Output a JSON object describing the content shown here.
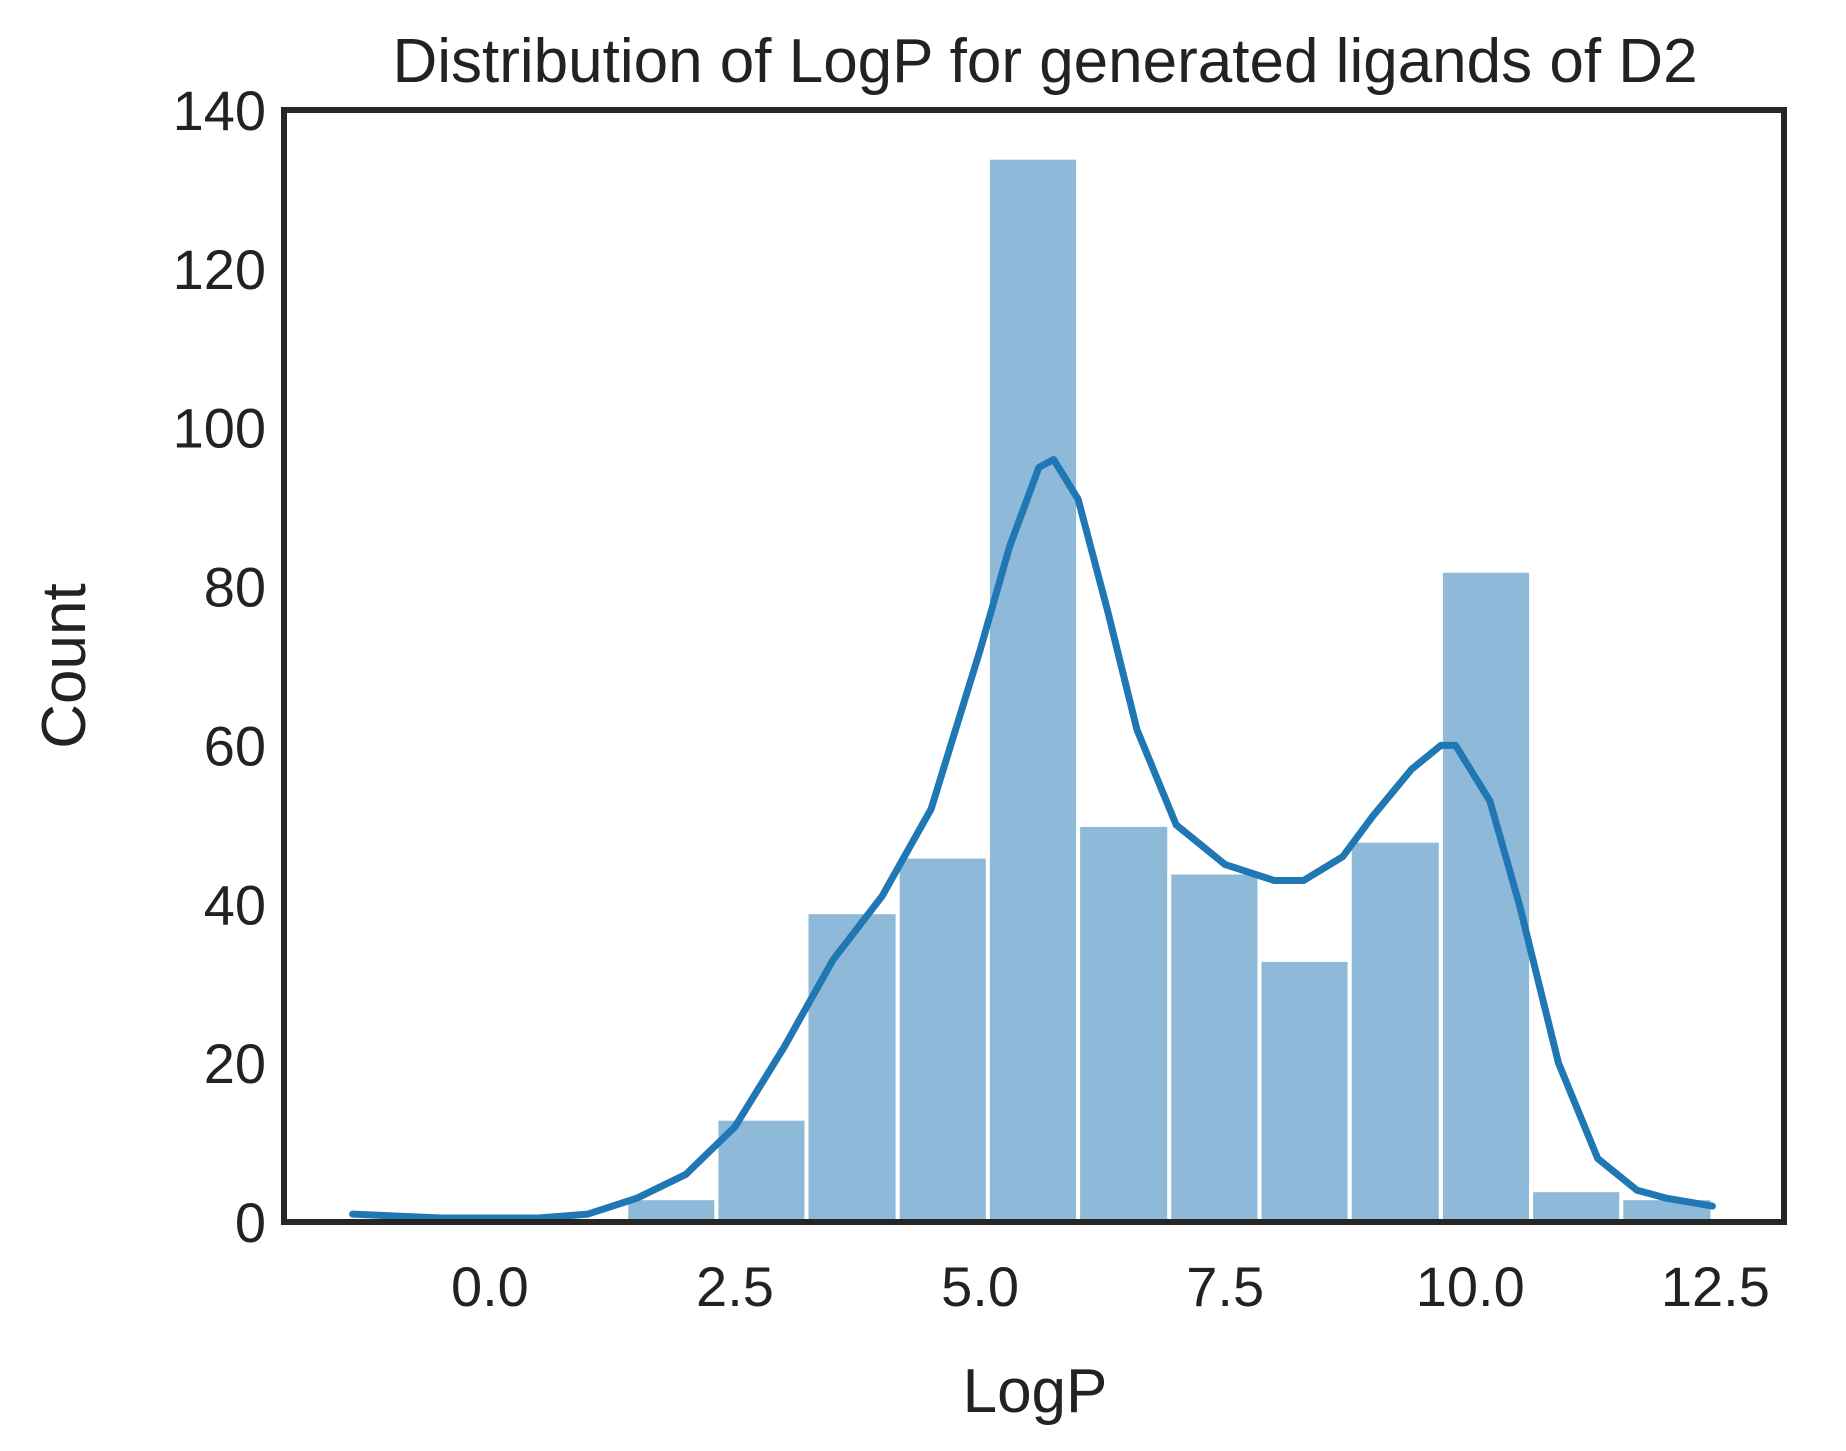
{
  "chart_data": {
    "type": "bar",
    "title": "Distribution of LogP for generated ligands of D2",
    "xlabel": "LogP",
    "ylabel": "Count",
    "xlim": [
      -2.1,
      13.2
    ],
    "ylim": [
      0,
      140
    ],
    "xticks": [
      0.0,
      2.5,
      5.0,
      7.5,
      10.0,
      12.5
    ],
    "xtick_labels": [
      "0.0",
      "2.5",
      "5.0",
      "7.5",
      "10.0",
      "12.5"
    ],
    "yticks": [
      0,
      20,
      40,
      60,
      80,
      100,
      120,
      140
    ],
    "ytick_labels": [
      "0",
      "20",
      "40",
      "60",
      "80",
      "100",
      "120",
      "140"
    ],
    "grid": false,
    "bars": [
      {
        "x0": 1.39,
        "x1": 2.31,
        "count": 3
      },
      {
        "x0": 2.31,
        "x1": 3.23,
        "count": 13
      },
      {
        "x0": 3.23,
        "x1": 4.16,
        "count": 39
      },
      {
        "x0": 4.16,
        "x1": 5.08,
        "count": 46
      },
      {
        "x0": 5.08,
        "x1": 6.0,
        "count": 134
      },
      {
        "x0": 6.0,
        "x1": 6.93,
        "count": 50
      },
      {
        "x0": 6.93,
        "x1": 7.85,
        "count": 44
      },
      {
        "x0": 7.85,
        "x1": 8.77,
        "count": 33
      },
      {
        "x0": 8.77,
        "x1": 9.7,
        "count": 48
      },
      {
        "x0": 9.7,
        "x1": 10.62,
        "count": 82
      },
      {
        "x0": 10.62,
        "x1": 11.54,
        "count": 4
      },
      {
        "x0": 11.54,
        "x1": 12.47,
        "count": 3
      }
    ],
    "kde": {
      "x": [
        -1.4,
        -0.5,
        0.5,
        1.0,
        1.5,
        2.0,
        2.5,
        3.0,
        3.5,
        4.0,
        4.5,
        5.0,
        5.3,
        5.6,
        5.75,
        6.0,
        6.3,
        6.6,
        7.0,
        7.5,
        8.0,
        8.3,
        8.7,
        9.0,
        9.4,
        9.7,
        9.85,
        10.2,
        10.5,
        10.9,
        11.3,
        11.7,
        12.0,
        12.47
      ],
      "y": [
        1,
        0.5,
        0.5,
        1,
        3,
        6,
        12,
        22,
        33,
        41,
        52,
        72,
        85,
        95,
        96,
        91,
        77,
        62,
        50,
        45,
        43,
        43,
        46,
        51,
        57,
        60,
        60,
        53,
        40,
        20,
        8,
        4,
        3,
        2
      ]
    },
    "colors": {
      "bar": "#8fb9d9",
      "kde": "#1f77b4",
      "frame": "#262626",
      "text": "#222222"
    }
  }
}
